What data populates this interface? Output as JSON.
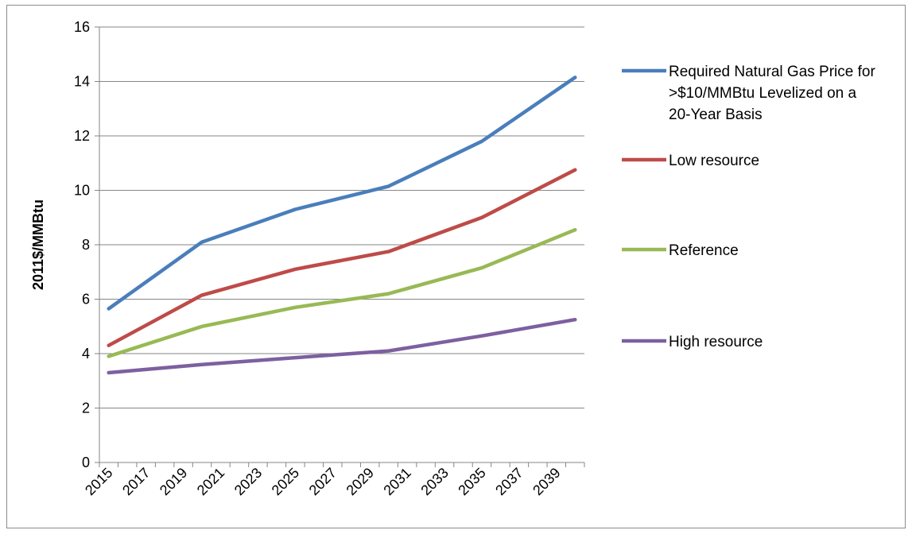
{
  "chart_data": {
    "type": "line",
    "title": "",
    "xlabel": "",
    "ylabel": "2011$/MMBtu",
    "ylim": [
      0,
      16
    ],
    "ytick_step": 2,
    "xlim": [
      2015,
      2040
    ],
    "xticks": [
      "2015",
      "2017",
      "2019",
      "2021",
      "2023",
      "2025",
      "2027",
      "2029",
      "2031",
      "2033",
      "2035",
      "2037",
      "2039"
    ],
    "grid": "horizontal",
    "legend_position": "right",
    "x": [
      2015,
      2020,
      2025,
      2030,
      2035,
      2040
    ],
    "series": [
      {
        "name": "Required Natural Gas Price for >$10/MMBtu Levelized on a 20-Year Basis",
        "color": "#4a7ebb",
        "values": [
          5.65,
          8.1,
          9.3,
          10.15,
          11.8,
          14.15
        ]
      },
      {
        "name": "Low resource",
        "color": "#be4b48",
        "values": [
          4.3,
          6.15,
          7.1,
          7.75,
          9.0,
          10.75
        ]
      },
      {
        "name": "Reference",
        "color": "#98b954",
        "values": [
          3.9,
          5.0,
          5.7,
          6.2,
          7.15,
          8.55
        ]
      },
      {
        "name": "High resource",
        "color": "#7d60a0",
        "values": [
          3.3,
          3.6,
          3.85,
          4.1,
          4.65,
          5.25
        ]
      }
    ]
  }
}
